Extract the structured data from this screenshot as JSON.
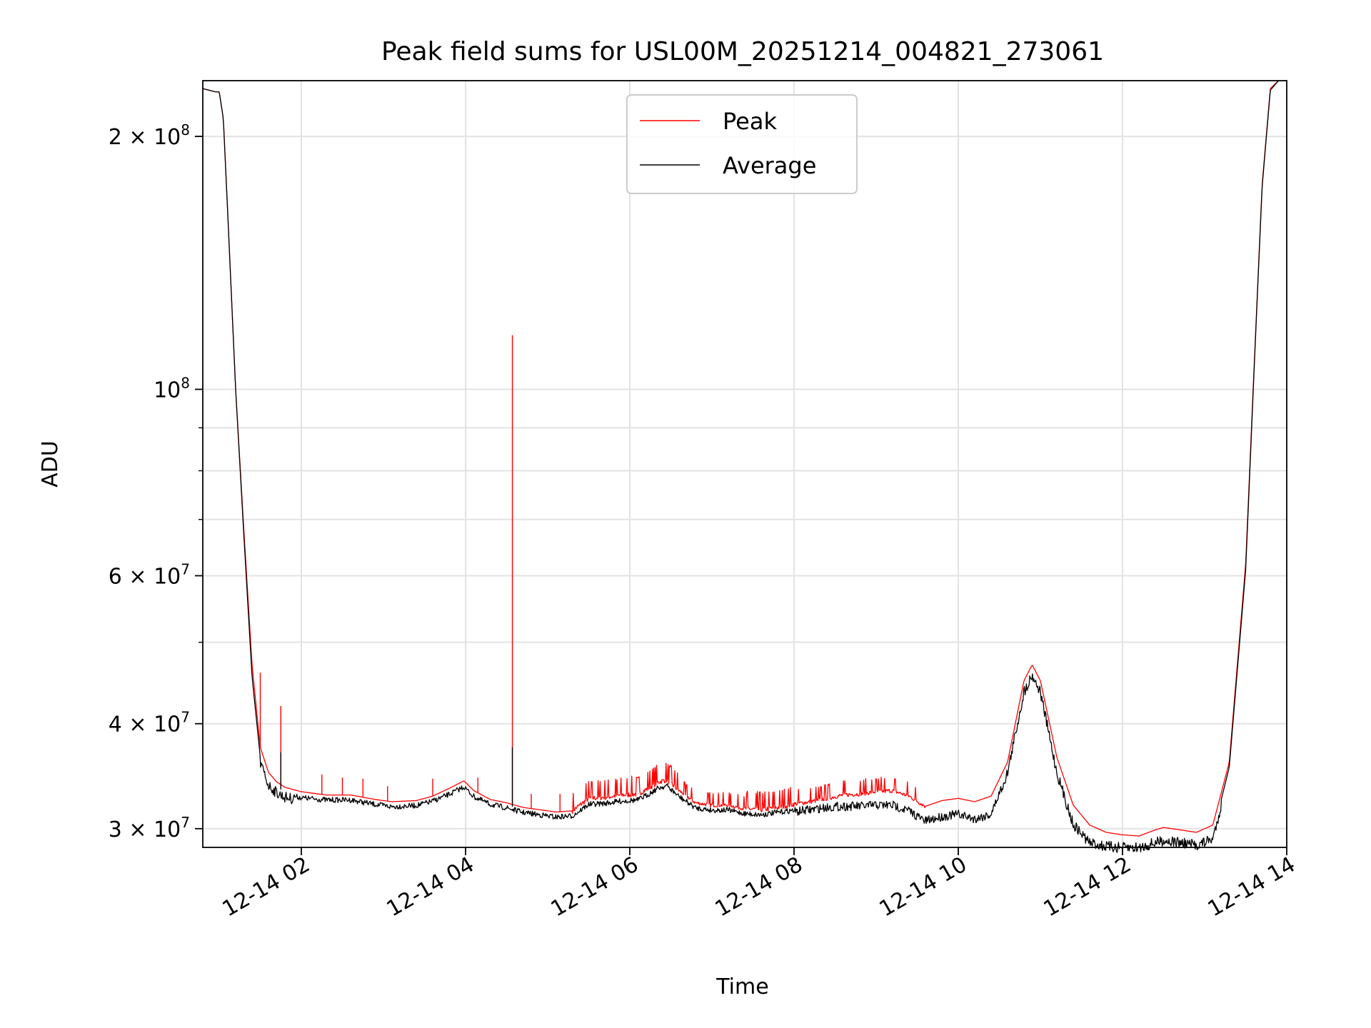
{
  "chart_data": {
    "type": "line",
    "title": "Peak field sums for USL00M_20251214_004821_273061",
    "xlabel": "Time",
    "ylabel": "ADU",
    "yscale": "log",
    "grid": true,
    "legend_position": "upper-center",
    "x_unit": "hours since 12-14 00:00",
    "xlim": [
      0.8,
      14.0
    ],
    "ylim": [
      28500000,
      233000000
    ],
    "x_ticks": [
      {
        "value": 2,
        "label": "12-14 02"
      },
      {
        "value": 4,
        "label": "12-14 04"
      },
      {
        "value": 6,
        "label": "12-14 06"
      },
      {
        "value": 8,
        "label": "12-14 08"
      },
      {
        "value": 10,
        "label": "12-14 10"
      },
      {
        "value": 12,
        "label": "12-14 12"
      },
      {
        "value": 14,
        "label": "12-14 14"
      }
    ],
    "y_major_ticks": [
      {
        "value": 30000000,
        "base": "3 × 10",
        "exp": "7"
      },
      {
        "value": 40000000,
        "base": "4 × 10",
        "exp": "7"
      },
      {
        "value": 60000000,
        "base": "6 × 10",
        "exp": "7"
      },
      {
        "value": 100000000,
        "base": "10",
        "exp": "8"
      },
      {
        "value": 200000000,
        "base": "2 × 10",
        "exp": "8"
      }
    ],
    "y_minor_ticks": [
      50000000,
      70000000,
      80000000,
      90000000
    ],
    "series": [
      {
        "name": "Peak",
        "color": "#ff0000",
        "x": [
          0.8,
          0.95,
          1.0,
          1.05,
          1.1,
          1.2,
          1.3,
          1.4,
          1.5,
          1.6,
          1.7,
          1.8,
          2.0,
          2.3,
          2.6,
          2.9,
          3.1,
          3.4,
          3.6,
          3.8,
          3.98,
          4.1,
          4.3,
          4.5,
          4.7,
          4.9,
          5.1,
          5.3,
          5.5,
          5.7,
          5.9,
          6.1,
          6.2,
          6.35,
          6.45,
          6.6,
          6.8,
          7.0,
          7.2,
          7.4,
          7.6,
          7.8,
          8.0,
          8.2,
          8.4,
          8.6,
          8.8,
          9.0,
          9.2,
          9.4,
          9.6,
          9.8,
          10.0,
          10.2,
          10.4,
          10.6,
          10.8,
          10.9,
          11.0,
          11.2,
          11.4,
          11.6,
          11.8,
          12.0,
          12.2,
          12.4,
          12.5,
          12.7,
          12.9,
          13.1,
          13.3,
          13.5,
          13.6,
          13.7,
          13.8,
          13.9
        ],
        "values": [
          228000000,
          226000000,
          226000000,
          210000000,
          165000000,
          100000000,
          68000000,
          47000000,
          37500000,
          35000000,
          34100000,
          33600000,
          33200000,
          32900000,
          32900000,
          32500000,
          32300000,
          32400000,
          32800000,
          33500000,
          34200000,
          33300000,
          32500000,
          32200000,
          31800000,
          31600000,
          31400000,
          31500000,
          32600000,
          32700000,
          32900000,
          33000000,
          33400000,
          34100000,
          34300000,
          33300000,
          32200000,
          32000000,
          32000000,
          31700000,
          31600000,
          31800000,
          32100000,
          32300000,
          32600000,
          32900000,
          33000000,
          33200000,
          33300000,
          32800000,
          31900000,
          32400000,
          32600000,
          32300000,
          32800000,
          36000000,
          45000000,
          47000000,
          45000000,
          36500000,
          32000000,
          30300000,
          29700000,
          29500000,
          29400000,
          29900000,
          30100000,
          29900000,
          29700000,
          30300000,
          36000000,
          62000000,
          105000000,
          175000000,
          228000000,
          233000000
        ],
        "spikes": [
          {
            "x": 1.5,
            "value": 46000000
          },
          {
            "x": 1.75,
            "value": 42000000
          },
          {
            "x": 2.25,
            "value": 34800000
          },
          {
            "x": 2.5,
            "value": 34500000
          },
          {
            "x": 2.75,
            "value": 34400000
          },
          {
            "x": 3.05,
            "value": 33700000
          },
          {
            "x": 3.6,
            "value": 34400000
          },
          {
            "x": 4.15,
            "value": 34500000
          },
          {
            "x": 4.57,
            "value": 116000000
          },
          {
            "x": 4.8,
            "value": 33000000
          },
          {
            "x": 5.15,
            "value": 33000000
          }
        ],
        "noisy_ranges": [
          {
            "from": 5.3,
            "to": 6.6,
            "amplitude": 0.05
          },
          {
            "from": 6.6,
            "to": 7.4,
            "amplitude": 0.035
          },
          {
            "from": 7.4,
            "to": 8.0,
            "amplitude": 0.05
          },
          {
            "from": 8.0,
            "to": 9.6,
            "amplitude": 0.04
          }
        ]
      },
      {
        "name": "Average",
        "color": "#000000",
        "x": [
          0.8,
          0.95,
          1.0,
          1.05,
          1.1,
          1.2,
          1.3,
          1.4,
          1.5,
          1.6,
          1.7,
          1.8,
          2.0,
          2.3,
          2.6,
          2.9,
          3.1,
          3.4,
          3.6,
          3.8,
          3.98,
          4.1,
          4.3,
          4.5,
          4.7,
          4.9,
          5.1,
          5.3,
          5.5,
          5.7,
          5.9,
          6.1,
          6.2,
          6.35,
          6.45,
          6.6,
          6.8,
          7.0,
          7.2,
          7.4,
          7.6,
          7.8,
          8.0,
          8.2,
          8.4,
          8.6,
          8.8,
          9.0,
          9.2,
          9.4,
          9.6,
          9.8,
          10.0,
          10.2,
          10.4,
          10.6,
          10.8,
          10.9,
          11.0,
          11.2,
          11.4,
          11.6,
          11.8,
          12.0,
          12.2,
          12.4,
          12.5,
          12.7,
          12.9,
          13.1,
          13.3,
          13.5,
          13.6,
          13.7,
          13.8,
          13.9
        ],
        "values": [
          228000000,
          226000000,
          226000000,
          210000000,
          165000000,
          100000000,
          67000000,
          45500000,
          36500000,
          34300000,
          33600000,
          33200000,
          32900000,
          32700000,
          32700000,
          32300000,
          32100000,
          32200000,
          32600000,
          33200000,
          33900000,
          33000000,
          32300000,
          32000000,
          31600000,
          31400000,
          31200000,
          31300000,
          32300000,
          32400000,
          32600000,
          32700000,
          33100000,
          33800000,
          34000000,
          33000000,
          32000000,
          31800000,
          31800000,
          31500000,
          31400000,
          31600000,
          31800000,
          32000000,
          32200000,
          32300000,
          32300000,
          32400000,
          32400000,
          31900000,
          31000000,
          31400000,
          31600000,
          31200000,
          31600000,
          35500000,
          44300000,
          46400000,
          44300000,
          35500000,
          30800000,
          29300000,
          29000000,
          28900000,
          28900000,
          29300000,
          29500000,
          29300000,
          29100000,
          29600000,
          35500000,
          61000000,
          104000000,
          174000000,
          227000000,
          233000000
        ],
        "spikes": [
          {
            "x": 1.75,
            "value": 37000000
          },
          {
            "x": 4.57,
            "value": 37500000
          }
        ],
        "noisy_ranges": [
          {
            "from": 1.5,
            "to": 1.9,
            "amplitude": 0.03
          },
          {
            "from": 1.9,
            "to": 5.3,
            "amplitude": 0.015
          },
          {
            "from": 5.3,
            "to": 8.0,
            "amplitude": 0.015
          },
          {
            "from": 8.0,
            "to": 10.5,
            "amplitude": 0.025
          },
          {
            "from": 10.5,
            "to": 13.2,
            "amplitude": 0.03
          }
        ]
      }
    ]
  }
}
